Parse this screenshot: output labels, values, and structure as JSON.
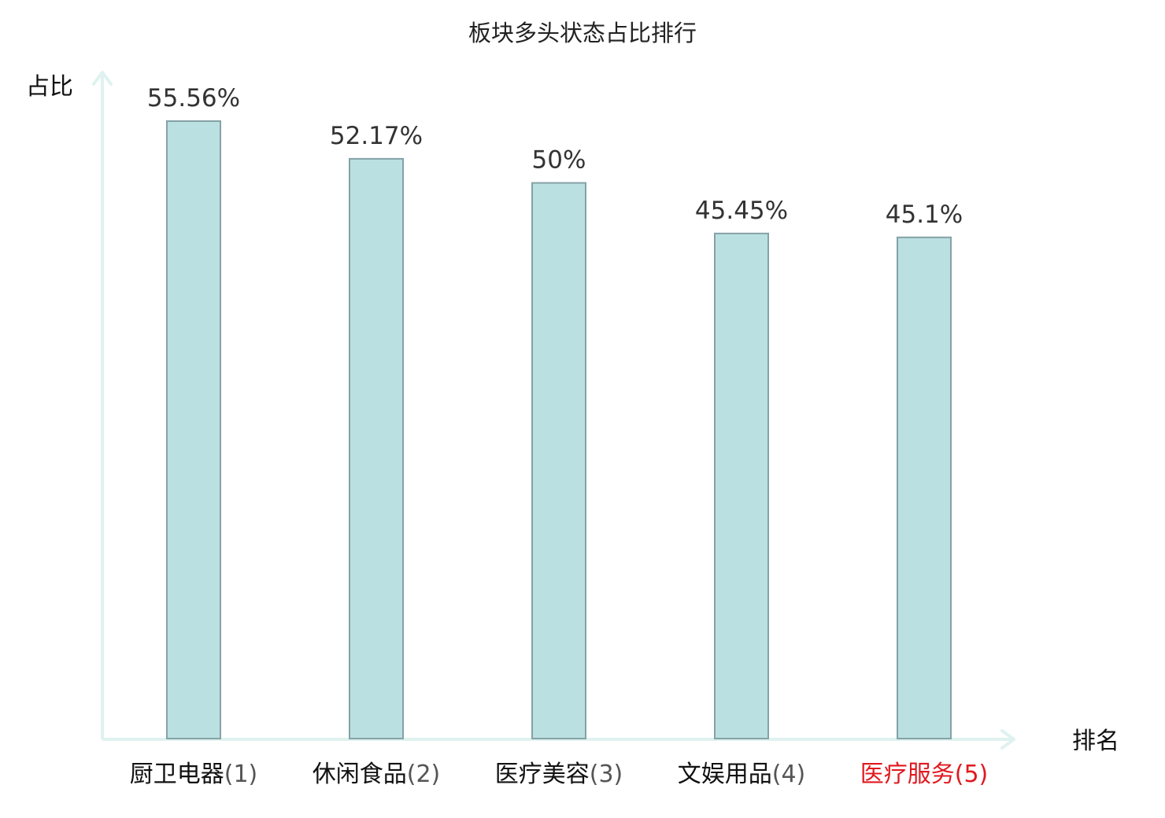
{
  "chart_data": {
    "type": "bar",
    "title": "板块多头状态占比排行",
    "ylabel": "占比",
    "xlabel": "排名",
    "categories": [
      "厨卫电器",
      "休闲食品",
      "医疗美容",
      "文娱用品",
      "医疗服务"
    ],
    "ranks": [
      "(1)",
      "(2)",
      "(3)",
      "(4)",
      "(5)"
    ],
    "values": [
      55.56,
      52.17,
      50,
      45.45,
      45.1
    ],
    "value_labels": [
      "55.56%",
      "52.17%",
      "50%",
      "45.45%",
      "45.1%"
    ],
    "ylim": [
      0,
      55.56
    ],
    "grid": false,
    "highlight_index": 4,
    "colors": {
      "bar_fill": "#bbe0e2",
      "bar_stroke": "#85a2a6",
      "axis": "#dff2ef",
      "highlight_text": "#e0191f"
    }
  }
}
